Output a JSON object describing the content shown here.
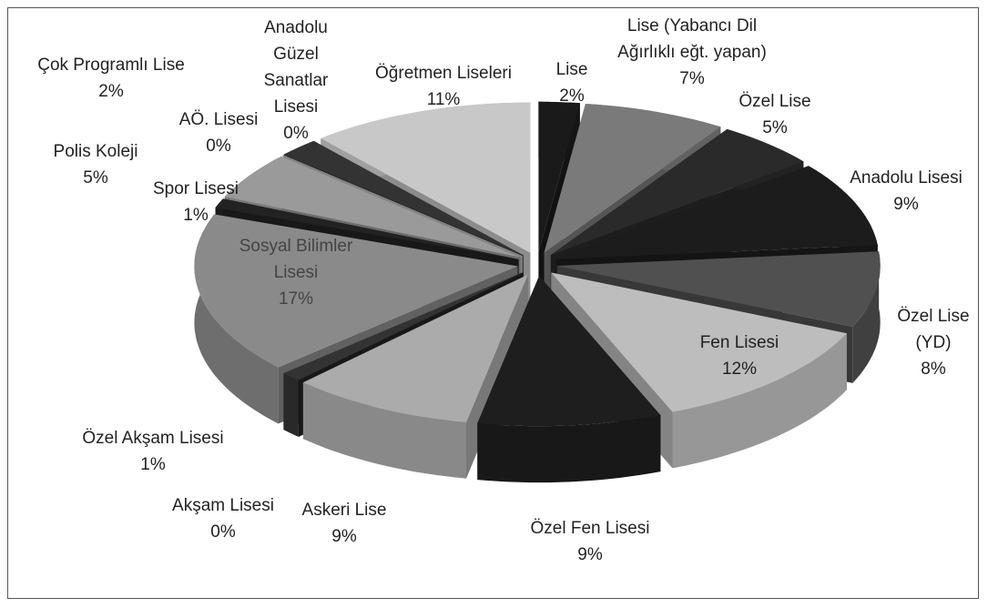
{
  "chart_data": {
    "type": "pie3d",
    "categories": [
      "Lise",
      "Lise (Yabancı Dil Ağırlıklı eğt. yapan)",
      "Özel Lise",
      "Anadolu Lisesi",
      "Özel Lise (YD)",
      "Fen Lisesi",
      "Özel Fen Lisesi",
      "Askeri Lise",
      "Akşam Lisesi",
      "Özel Akşam Lisesi",
      "Sosyal Bilimler Lisesi",
      "Spor Lisesi",
      "Polis Koleji",
      "AÖ. Lisesi",
      "Anadolu Güzel Sanatlar Lisesi",
      "Çok Programlı Lise",
      "Öğretmen Liseleri"
    ],
    "values": [
      2,
      7,
      5,
      9,
      8,
      12,
      9,
      9,
      0,
      1,
      17,
      1,
      5,
      0,
      0,
      2,
      11
    ],
    "value_labels": [
      "2%",
      "7%",
      "5%",
      "9%",
      "8%",
      "12%",
      "9%",
      "9%",
      "0%",
      "1%",
      "17%",
      "1%",
      "5%",
      "0%",
      "0%",
      "2%",
      "11%"
    ],
    "colors": [
      "#1a1a1a",
      "#7a7a7a",
      "#2a2a2a",
      "#1c1c1c",
      "#505050",
      "#bdbdbd",
      "#1e1e1e",
      "#ababab",
      "#222222",
      "#333333",
      "#8a8a8a",
      "#222222",
      "#9a9a9a",
      "#444444",
      "#bbbbbb",
      "#333333",
      "#c8c8c8"
    ]
  }
}
